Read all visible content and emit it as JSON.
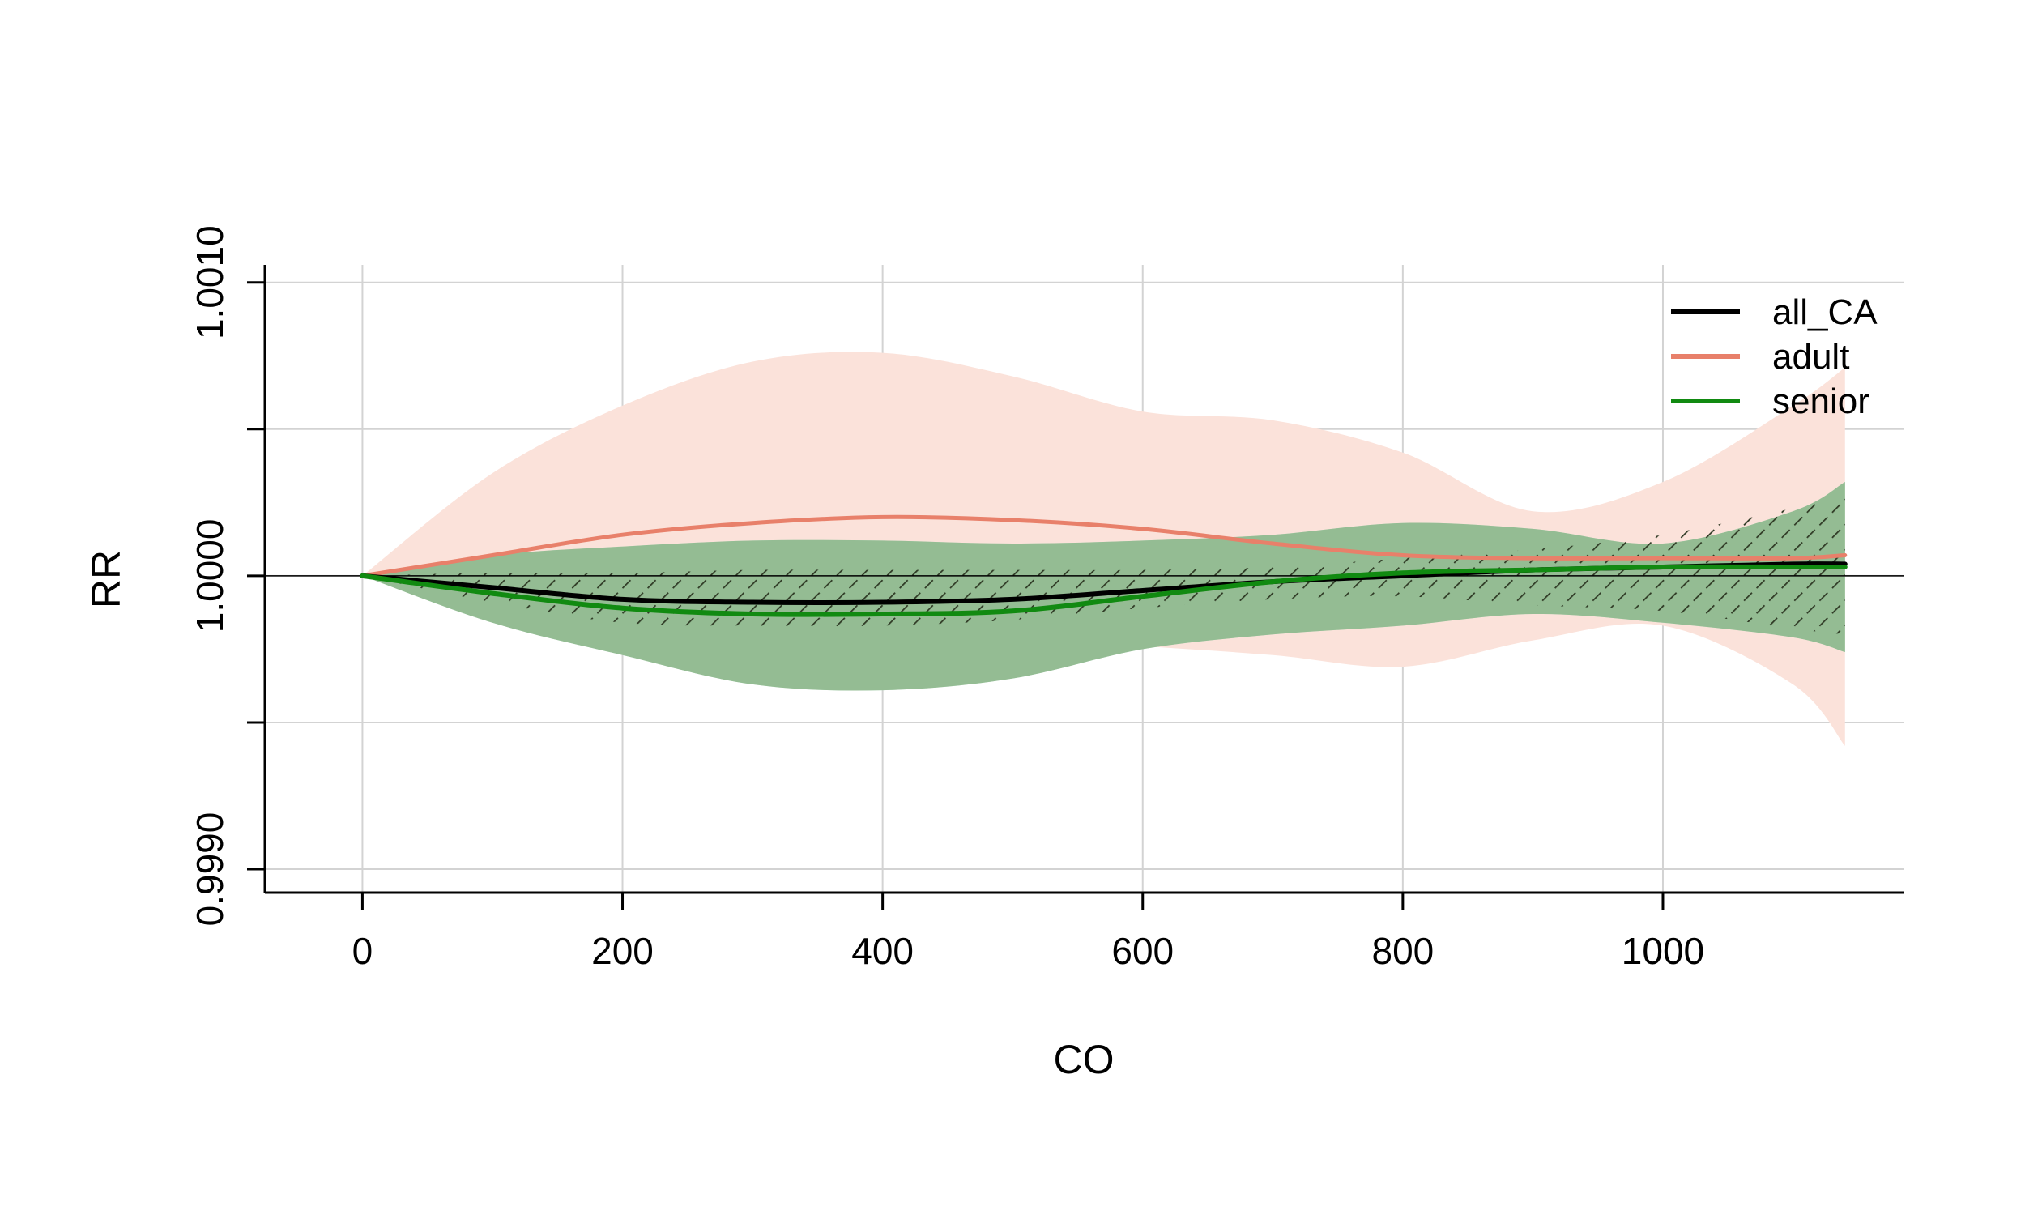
{
  "chart_data": {
    "type": "line",
    "xlabel": "CO",
    "ylabel": "RR",
    "xlim": [
      -75,
      1185
    ],
    "ylim": [
      0.99892,
      1.00106
    ],
    "xticks": [
      0,
      200,
      400,
      600,
      800,
      1000
    ],
    "xtick_labels": [
      "0",
      "200",
      "400",
      "600",
      "800",
      "1000"
    ],
    "yticks": [
      0.999,
      0.9995,
      1.0,
      1.0005,
      1.001
    ],
    "ytick_labels": [
      "0.9990",
      "",
      "1.0000",
      "",
      "1.0010"
    ],
    "grid": true,
    "reference_line": 1.0,
    "legend_position": "top-right",
    "colors": {
      "all_CA": "#000000",
      "adult": "#e8806a",
      "senior": "#118a11",
      "adult_band": "#fbe2da",
      "senior_band": "#8db48a",
      "senior_band_edge": "#b8e6c8",
      "hatch": "#2f3a25",
      "grid": "#d3d3d3"
    },
    "x": [
      0,
      100,
      200,
      300,
      400,
      500,
      600,
      700,
      800,
      900,
      1000,
      1100,
      1140
    ],
    "series": [
      {
        "name": "all_CA",
        "style": "solid",
        "values": [
          1.0,
          0.99996,
          0.99992,
          0.99991,
          0.99991,
          0.99992,
          0.99995,
          0.99998,
          1.0,
          1.00002,
          1.00003,
          1.00004,
          1.00004
        ],
        "lower": [
          1.0,
          0.99991,
          0.99984,
          0.99983,
          0.99983,
          0.99985,
          0.99989,
          0.99992,
          0.99993,
          0.9999,
          0.99988,
          0.99982,
          0.9998
        ],
        "upper": [
          1.0,
          1.00001,
          1.00001,
          1.00002,
          1.00002,
          1.00002,
          1.00002,
          1.00003,
          1.00006,
          1.00009,
          1.00014,
          1.00023,
          1.00027
        ]
      },
      {
        "name": "adult",
        "style": "solid",
        "values": [
          1.0,
          1.00007,
          1.00014,
          1.00018,
          1.0002,
          1.00019,
          1.00016,
          1.00011,
          1.00007,
          1.00006,
          1.00006,
          1.00006,
          1.00007
        ],
        "lower": [
          1.0,
          0.99992,
          0.99984,
          0.99979,
          0.99978,
          0.99979,
          0.99976,
          0.99973,
          0.99969,
          0.99978,
          0.99983,
          0.99963,
          0.99942
        ],
        "upper": [
          1.0,
          1.00035,
          1.00058,
          1.00073,
          1.00076,
          1.00068,
          1.00056,
          1.00053,
          1.00042,
          1.00022,
          1.00032,
          1.00058,
          1.00071
        ]
      },
      {
        "name": "senior",
        "style": "solid",
        "values": [
          1.0,
          0.99994,
          0.99989,
          0.99987,
          0.99987,
          0.99988,
          0.99993,
          0.99998,
          1.00001,
          1.00002,
          1.00003,
          1.00003,
          1.00003
        ],
        "lower": [
          1.0,
          0.99984,
          0.99973,
          0.99963,
          0.99961,
          0.99965,
          0.99975,
          0.9998,
          0.99983,
          0.99987,
          0.99984,
          0.99979,
          0.99974
        ],
        "upper": [
          1.0,
          1.00007,
          1.0001,
          1.00012,
          1.00012,
          1.00011,
          1.00012,
          1.00014,
          1.00018,
          1.00016,
          1.00011,
          1.00022,
          1.00032
        ]
      }
    ]
  }
}
